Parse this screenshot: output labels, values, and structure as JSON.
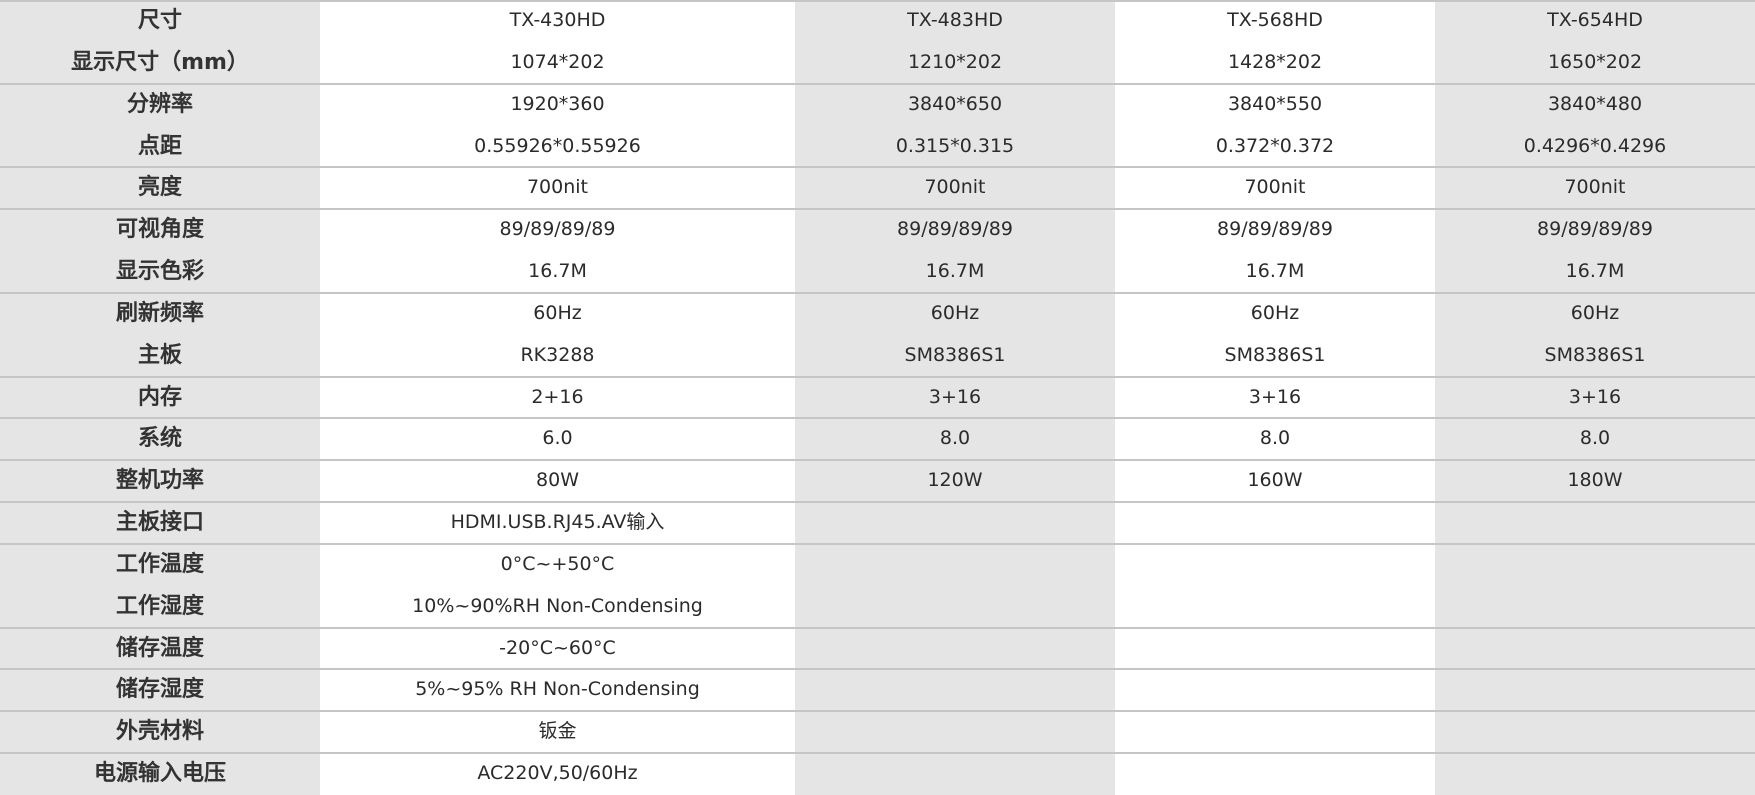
{
  "header": {
    "label": "尺寸",
    "models": [
      "TX-430HD",
      "TX-483HD",
      "TX-568HD",
      "TX-654HD"
    ]
  },
  "rows": [
    {
      "label": "显示尺寸（mm）",
      "values": [
        "1074*202",
        "1210*202",
        "1428*202",
        "1650*202"
      ]
    },
    {
      "label": "分辨率",
      "values": [
        "1920*360",
        "3840*650",
        "3840*550",
        "3840*480"
      ]
    },
    {
      "label": "点距",
      "values": [
        "0.55926*0.55926",
        "0.315*0.315",
        "0.372*0.372",
        "0.4296*0.4296"
      ]
    },
    {
      "label": "亮度",
      "values": [
        "700nit",
        "700nit",
        "700nit",
        "700nit"
      ]
    },
    {
      "label": "可视角度",
      "values": [
        "89/89/89/89",
        "89/89/89/89",
        "89/89/89/89",
        "89/89/89/89"
      ]
    },
    {
      "label": "显示色彩",
      "values": [
        "16.7M",
        "16.7M",
        "16.7M",
        "16.7M"
      ]
    },
    {
      "label": "刷新频率",
      "values": [
        "60Hz",
        "60Hz",
        "60Hz",
        "60Hz"
      ]
    },
    {
      "label": "主板",
      "values": [
        "RK3288",
        "SM8386S1",
        "SM8386S1",
        "SM8386S1"
      ]
    },
    {
      "label": "内存",
      "values": [
        "2+16",
        "3+16",
        "3+16",
        "3+16"
      ]
    },
    {
      "label": "系统",
      "values": [
        "6.0",
        "8.0",
        "8.0",
        "8.0"
      ]
    },
    {
      "label": "整机功率",
      "values": [
        "80W",
        "120W",
        "160W",
        "180W"
      ]
    },
    {
      "label": "主板接口",
      "values": [
        "HDMI.USB.RJ45.AV输入"
      ]
    },
    {
      "label": "工作温度",
      "values": [
        "0°C~+50°C"
      ]
    },
    {
      "label": "工作湿度",
      "values": [
        "10%~90%RH Non-Condensing"
      ]
    },
    {
      "label": "储存温度",
      "values": [
        "-20°C~60°C"
      ]
    },
    {
      "label": "储存湿度",
      "values": [
        "5%~95% RH Non-Condensing"
      ]
    },
    {
      "label": "外壳材料",
      "values": [
        "钣金"
      ]
    },
    {
      "label": "电源输入电压",
      "values": [
        "AC220V,50/60Hz"
      ]
    }
  ],
  "colors": {
    "gray_column": "#e5e5e5",
    "white_column": "#ffffff",
    "divider": "#c6c6c6"
  }
}
